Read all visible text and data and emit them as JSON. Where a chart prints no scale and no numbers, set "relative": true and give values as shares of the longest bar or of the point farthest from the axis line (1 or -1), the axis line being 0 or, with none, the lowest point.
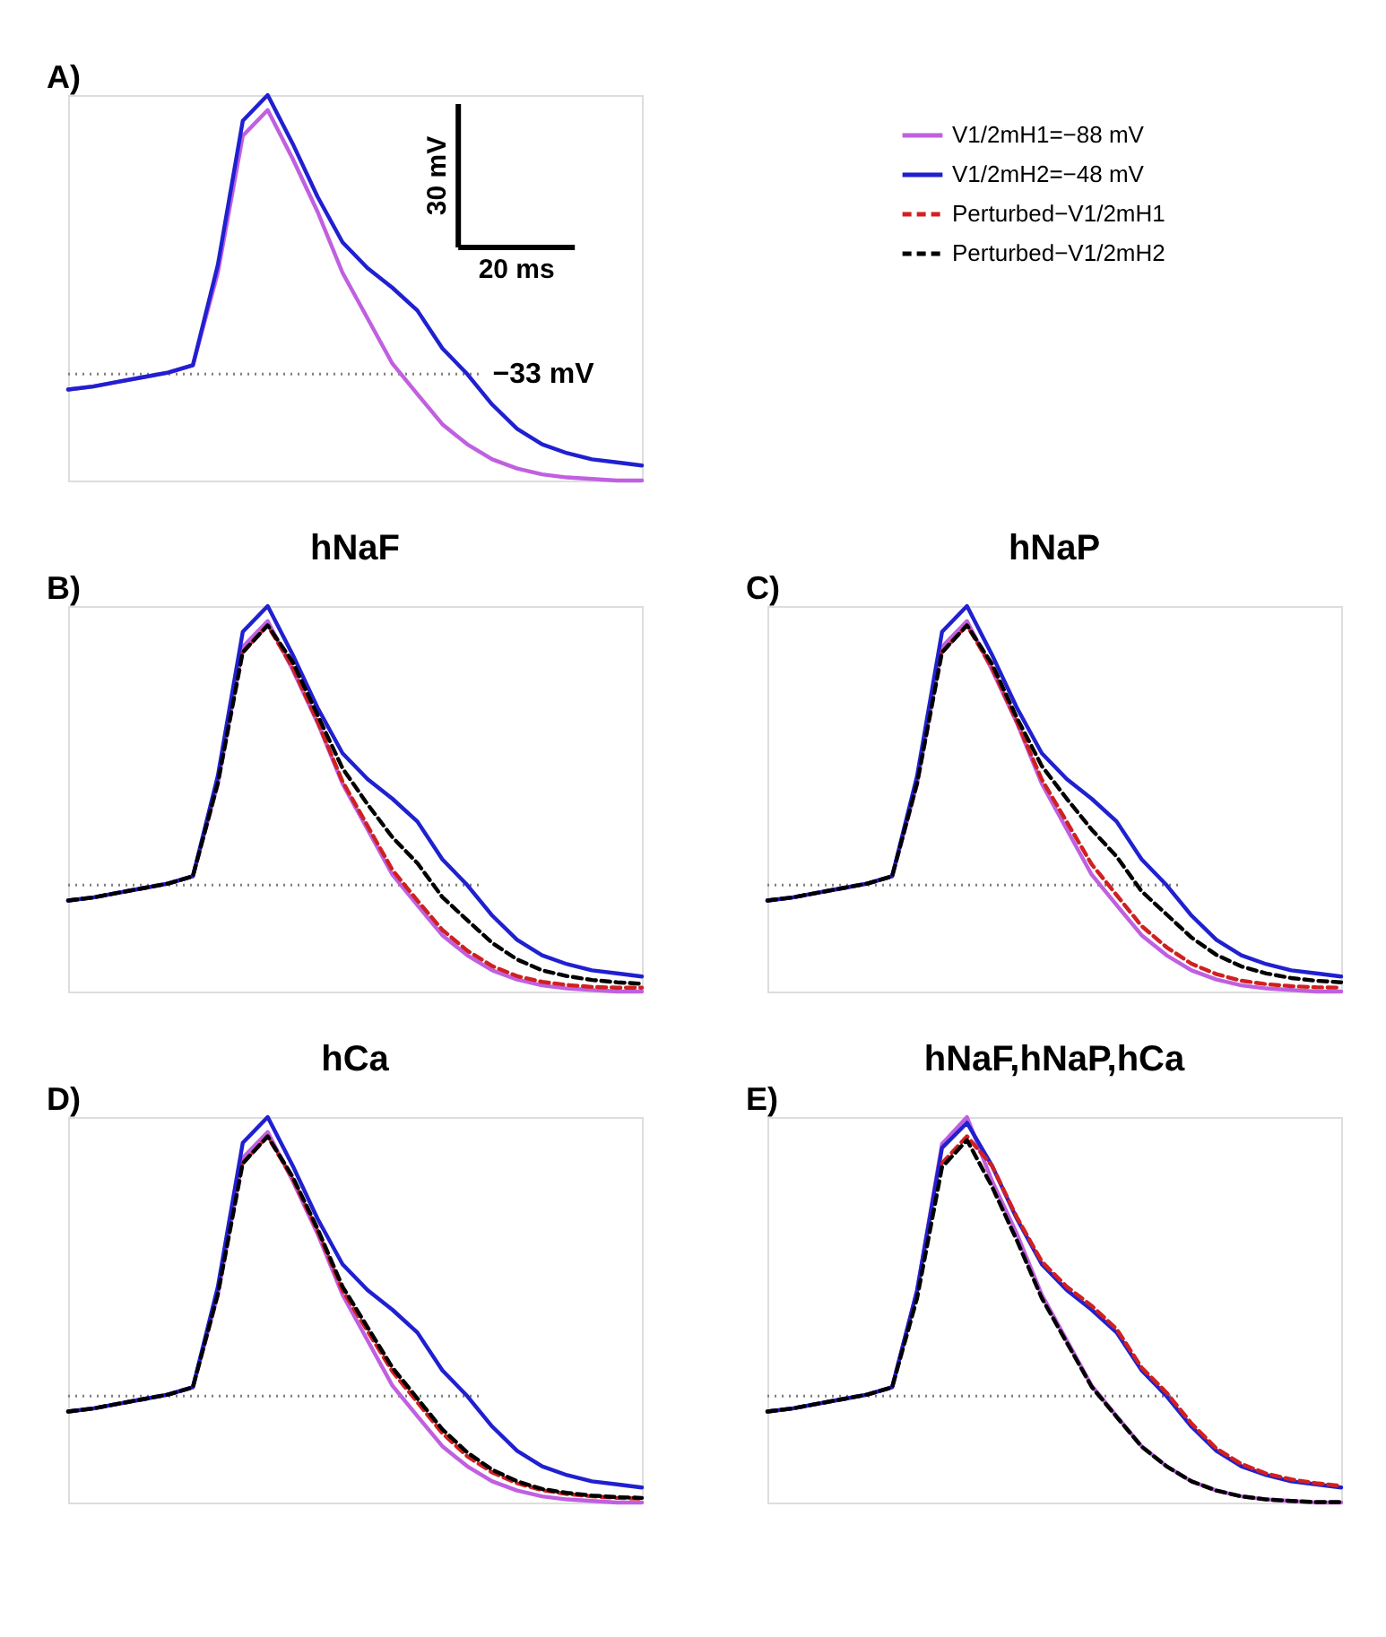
{
  "chart_data": [
    {
      "type": "line",
      "relative": true,
      "legend": "top right",
      "annotations": [
        "A)",
        "30 mV",
        "20 ms"
      ],
      "categories": [
        null,
        null,
        null,
        null,
        null,
        null,
        null,
        null,
        null,
        null,
        null,
        null,
        null,
        null,
        null,
        null,
        null,
        null,
        null,
        null,
        null,
        null,
        null,
        null
      ],
      "ref_lines": [
        {
          "axis": "y",
          "value": 0.276,
          "label": "−33 mV",
          "line_style": "dotted",
          "color": "#808080"
        }
      ],
      "series": [
        {
          "name": "V1/2mH1=−88 mV",
          "color": "#c060e0",
          "line_style": "solid",
          "values": [
            0.236,
            0.244,
            0.256,
            0.268,
            0.28,
            0.299,
            0.539,
            0.894,
            0.961,
            0.835,
            0.697,
            0.539,
            0.421,
            0.303,
            0.224,
            0.146,
            0.094,
            0.055,
            0.031,
            0.016,
            0.008,
            0.004,
            0,
            0
          ]
        },
        {
          "name": "V1/2mH2=−48 mV",
          "color": "#2020d0",
          "line_style": "solid",
          "values": [
            0.236,
            0.244,
            0.256,
            0.268,
            0.28,
            0.299,
            0.559,
            0.933,
            1.0,
            0.874,
            0.736,
            0.618,
            0.551,
            0.5,
            0.441,
            0.343,
            0.276,
            0.197,
            0.134,
            0.094,
            0.071,
            0.055,
            0.047,
            0.039
          ]
        }
      ]
    },
    {
      "type": "line",
      "relative": true,
      "title": "hNaF",
      "annotations": [
        "B)"
      ],
      "legend": "top right",
      "categories": [
        null,
        null,
        null,
        null,
        null,
        null,
        null,
        null,
        null,
        null,
        null,
        null,
        null,
        null,
        null,
        null,
        null,
        null,
        null,
        null,
        null,
        null,
        null,
        null
      ],
      "ref_lines": [
        {
          "axis": "y",
          "value": 0.276,
          "line_style": "dotted",
          "color": "#808080"
        }
      ],
      "series": [
        {
          "name": "V1/2mH1=−88 mV",
          "color": "#c060e0",
          "line_style": "solid",
          "values": [
            0.236,
            0.244,
            0.256,
            0.268,
            0.28,
            0.299,
            0.539,
            0.894,
            0.961,
            0.835,
            0.697,
            0.539,
            0.421,
            0.303,
            0.224,
            0.146,
            0.094,
            0.055,
            0.031,
            0.016,
            0.008,
            0.004,
            0,
            0
          ]
        },
        {
          "name": "V1/2mH2=−48 mV",
          "color": "#2020d0",
          "line_style": "solid",
          "values": [
            0.236,
            0.244,
            0.256,
            0.268,
            0.28,
            0.299,
            0.559,
            0.933,
            1.0,
            0.874,
            0.736,
            0.618,
            0.551,
            0.5,
            0.441,
            0.343,
            0.276,
            0.197,
            0.134,
            0.094,
            0.071,
            0.055,
            0.047,
            0.039
          ]
        },
        {
          "name": "Perturbed−V1/2mH1",
          "color": "#d02020",
          "line_style": "dashed",
          "values": [
            null,
            null,
            null,
            null,
            null,
            null,
            null,
            0.88,
            0.95,
            0.84,
            0.7,
            0.545,
            0.43,
            0.315,
            0.236,
            0.16,
            0.106,
            0.066,
            0.04,
            0.025,
            0.017,
            0.012,
            0.01,
            0.01
          ]
        },
        {
          "name": "Perturbed−V1/2mH2",
          "color": "#000000",
          "line_style": "dashed",
          "values": [
            0.236,
            0.244,
            0.256,
            0.268,
            0.28,
            0.299,
            0.54,
            0.88,
            0.95,
            0.855,
            0.717,
            0.579,
            0.486,
            0.4,
            0.333,
            0.245,
            0.185,
            0.126,
            0.083,
            0.055,
            0.04,
            0.03,
            0.024,
            0.02
          ]
        }
      ]
    },
    {
      "type": "line",
      "relative": true,
      "title": "hNaP",
      "annotations": [
        "C)"
      ],
      "categories": [
        null,
        null,
        null,
        null,
        null,
        null,
        null,
        null,
        null,
        null,
        null,
        null,
        null,
        null,
        null,
        null,
        null,
        null,
        null,
        null,
        null,
        null,
        null,
        null
      ],
      "ref_lines": [
        {
          "axis": "y",
          "value": 0.276,
          "line_style": "dotted",
          "color": "#808080"
        }
      ],
      "series": [
        {
          "name": "V1/2mH1=−88 mV",
          "color": "#c060e0",
          "line_style": "solid",
          "values": [
            0.236,
            0.244,
            0.256,
            0.268,
            0.28,
            0.299,
            0.539,
            0.894,
            0.961,
            0.835,
            0.697,
            0.539,
            0.421,
            0.303,
            0.224,
            0.146,
            0.094,
            0.055,
            0.031,
            0.016,
            0.008,
            0.004,
            0,
            0
          ]
        },
        {
          "name": "V1/2mH2=−48 mV",
          "color": "#2020d0",
          "line_style": "solid",
          "values": [
            0.236,
            0.244,
            0.256,
            0.268,
            0.28,
            0.299,
            0.559,
            0.933,
            1.0,
            0.874,
            0.736,
            0.618,
            0.551,
            0.5,
            0.441,
            0.343,
            0.276,
            0.197,
            0.134,
            0.094,
            0.071,
            0.055,
            0.047,
            0.039
          ]
        },
        {
          "name": "Perturbed−V1/2mH1",
          "color": "#d02020",
          "line_style": "dashed",
          "values": [
            null,
            null,
            null,
            null,
            null,
            null,
            null,
            0.88,
            0.95,
            0.84,
            0.7,
            0.55,
            0.44,
            0.33,
            0.25,
            0.17,
            0.115,
            0.072,
            0.045,
            0.028,
            0.019,
            0.014,
            0.011,
            0.01
          ]
        },
        {
          "name": "Perturbed−V1/2mH2",
          "color": "#000000",
          "line_style": "dashed",
          "values": [
            0.236,
            0.244,
            0.256,
            0.268,
            0.28,
            0.299,
            0.54,
            0.88,
            0.95,
            0.85,
            0.71,
            0.585,
            0.5,
            0.42,
            0.35,
            0.26,
            0.2,
            0.14,
            0.095,
            0.065,
            0.047,
            0.035,
            0.028,
            0.024
          ]
        }
      ]
    },
    {
      "type": "line",
      "relative": true,
      "title": "hCa",
      "annotations": [
        "D)"
      ],
      "categories": [
        null,
        null,
        null,
        null,
        null,
        null,
        null,
        null,
        null,
        null,
        null,
        null,
        null,
        null,
        null,
        null,
        null,
        null,
        null,
        null,
        null,
        null,
        null,
        null
      ],
      "ref_lines": [
        {
          "axis": "y",
          "value": 0.276,
          "line_style": "dotted",
          "color": "#808080"
        }
      ],
      "series": [
        {
          "name": "V1/2mH1=−88 mV",
          "color": "#c060e0",
          "line_style": "solid",
          "values": [
            0.236,
            0.244,
            0.256,
            0.268,
            0.28,
            0.299,
            0.539,
            0.894,
            0.961,
            0.835,
            0.697,
            0.539,
            0.421,
            0.303,
            0.224,
            0.146,
            0.094,
            0.055,
            0.031,
            0.016,
            0.008,
            0.004,
            0,
            0
          ]
        },
        {
          "name": "V1/2mH2=−48 mV",
          "color": "#2020d0",
          "line_style": "solid",
          "values": [
            0.236,
            0.244,
            0.256,
            0.268,
            0.28,
            0.299,
            0.559,
            0.933,
            1.0,
            0.874,
            0.736,
            0.618,
            0.551,
            0.5,
            0.441,
            0.343,
            0.276,
            0.197,
            0.134,
            0.094,
            0.071,
            0.055,
            0.047,
            0.039
          ]
        },
        {
          "name": "Perturbed−V1/2mH1",
          "color": "#d02020",
          "line_style": "dashed",
          "values": [
            null,
            null,
            null,
            null,
            null,
            null,
            null,
            0.88,
            0.95,
            0.84,
            0.705,
            0.55,
            0.445,
            0.34,
            0.26,
            0.18,
            0.12,
            0.078,
            0.05,
            0.032,
            0.022,
            0.016,
            0.012,
            0.01
          ]
        },
        {
          "name": "Perturbed−V1/2mH2",
          "color": "#000000",
          "line_style": "dashed",
          "values": [
            0.236,
            0.244,
            0.256,
            0.268,
            0.28,
            0.299,
            0.54,
            0.88,
            0.95,
            0.845,
            0.71,
            0.56,
            0.455,
            0.35,
            0.27,
            0.19,
            0.13,
            0.085,
            0.055,
            0.035,
            0.025,
            0.018,
            0.014,
            0.012
          ]
        }
      ]
    },
    {
      "type": "line",
      "relative": true,
      "title": "hNaF,hNaP,hCa",
      "annotations": [
        "E)"
      ],
      "categories": [
        null,
        null,
        null,
        null,
        null,
        null,
        null,
        null,
        null,
        null,
        null,
        null,
        null,
        null,
        null,
        null,
        null,
        null,
        null,
        null,
        null,
        null,
        null,
        null
      ],
      "ref_lines": [
        {
          "axis": "y",
          "value": 0.276,
          "line_style": "dotted",
          "color": "#808080"
        }
      ],
      "series": [
        {
          "name": "V1/2mH1=−88 mV",
          "color": "#c060e0",
          "line_style": "solid",
          "values": [
            0.236,
            0.244,
            0.256,
            0.268,
            0.28,
            0.299,
            0.55,
            0.93,
            1.0,
            0.835,
            0.697,
            0.539,
            0.421,
            0.303,
            0.224,
            0.146,
            0.094,
            0.055,
            0.031,
            0.016,
            0.008,
            0.004,
            0,
            0
          ]
        },
        {
          "name": "V1/2mH2=−48 mV",
          "color": "#2020d0",
          "line_style": "solid",
          "values": [
            0.236,
            0.244,
            0.256,
            0.268,
            0.28,
            0.299,
            0.55,
            0.92,
            0.985,
            0.874,
            0.736,
            0.618,
            0.551,
            0.5,
            0.441,
            0.343,
            0.276,
            0.197,
            0.134,
            0.094,
            0.071,
            0.055,
            0.047,
            0.039
          ]
        },
        {
          "name": "Perturbed−V1/2mH1",
          "color": "#d02020",
          "line_style": "dashed",
          "values": [
            null,
            null,
            null,
            null,
            null,
            null,
            null,
            0.88,
            0.95,
            0.874,
            0.74,
            0.625,
            0.56,
            0.51,
            0.45,
            0.35,
            0.285,
            0.205,
            0.14,
            0.1,
            0.075,
            0.06,
            0.05,
            0.043
          ]
        },
        {
          "name": "Perturbed−V1/2mH2",
          "color": "#000000",
          "line_style": "dashed",
          "values": [
            0.236,
            0.244,
            0.256,
            0.268,
            0.28,
            0.299,
            0.53,
            0.87,
            0.94,
            0.82,
            0.68,
            0.53,
            0.415,
            0.3,
            0.222,
            0.145,
            0.094,
            0.055,
            0.031,
            0.016,
            0.008,
            0.004,
            0.001,
            0.001
          ]
        }
      ]
    }
  ]
}
